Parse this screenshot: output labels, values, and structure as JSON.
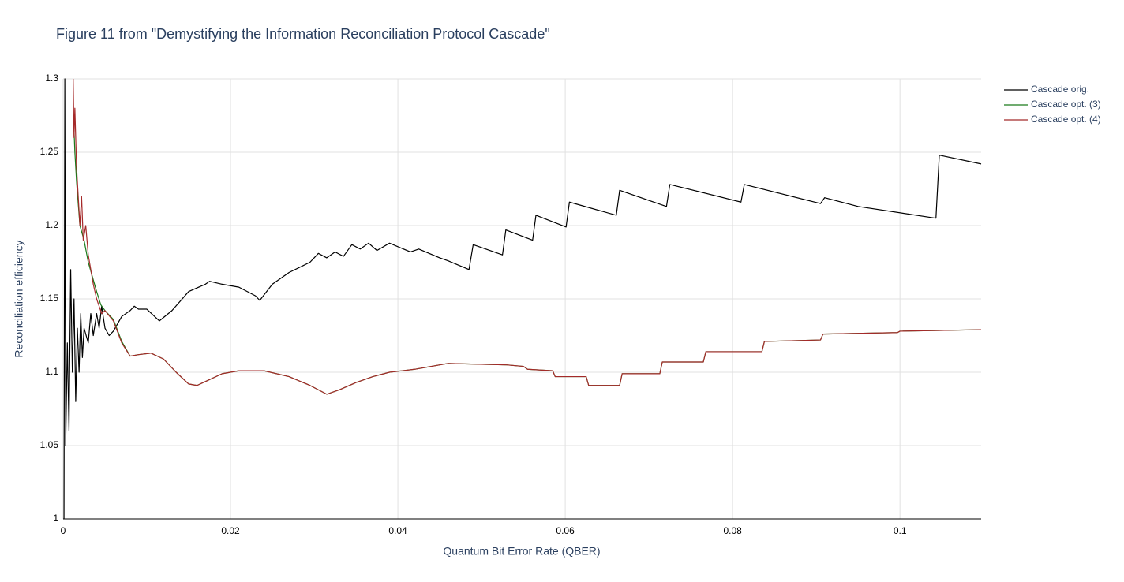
{
  "chart_data": {
    "type": "line",
    "title": "Figure 11 from \"Demystifying the Information Reconciliation Protocol Cascade\"",
    "x_label": "Quantum Bit Error Rate (QBER)",
    "y_label": "Reconciliation efficiency",
    "xlim": [
      0,
      0.1097
    ],
    "ylim": [
      1,
      1.3
    ],
    "xticks": [
      0,
      0.02,
      0.04,
      0.06,
      0.08,
      0.1
    ],
    "yticks": [
      1,
      1.05,
      1.1,
      1.15,
      1.2,
      1.25,
      1.3
    ],
    "grid": true,
    "legend": "top-right",
    "series": [
      {
        "name": "Cascade orig.",
        "color": "#000000",
        "x": [
          0.0001,
          0.0002,
          0.0003,
          0.0005,
          0.0007,
          0.0009,
          0.0011,
          0.0013,
          0.0015,
          0.0017,
          0.0019,
          0.0021,
          0.0023,
          0.0025,
          0.003,
          0.0033,
          0.0036,
          0.004,
          0.0043,
          0.0046,
          0.005,
          0.0055,
          0.006,
          0.007,
          0.008,
          0.0085,
          0.009,
          0.01,
          0.0115,
          0.013,
          0.015,
          0.017,
          0.0175,
          0.019,
          0.021,
          0.023,
          0.0235,
          0.025,
          0.027,
          0.0295,
          0.0305,
          0.0315,
          0.0325,
          0.0335,
          0.0345,
          0.0355,
          0.0365,
          0.0375,
          0.039,
          0.0415,
          0.0425,
          0.045,
          0.046,
          0.0485,
          0.049,
          0.0525,
          0.0529,
          0.0561,
          0.0565,
          0.0601,
          0.0605,
          0.0661,
          0.0665,
          0.0721,
          0.0725,
          0.081,
          0.0814,
          0.0905,
          0.091,
          0.095,
          0.1043,
          0.1047,
          0.1097
        ],
        "values": [
          1.0,
          1.3,
          1.05,
          1.12,
          1.06,
          1.17,
          1.1,
          1.15,
          1.08,
          1.13,
          1.1,
          1.14,
          1.11,
          1.13,
          1.12,
          1.14,
          1.125,
          1.14,
          1.13,
          1.145,
          1.13,
          1.125,
          1.128,
          1.138,
          1.142,
          1.145,
          1.143,
          1.143,
          1.135,
          1.142,
          1.155,
          1.16,
          1.162,
          1.16,
          1.158,
          1.152,
          1.149,
          1.16,
          1.168,
          1.175,
          1.181,
          1.178,
          1.182,
          1.179,
          1.187,
          1.184,
          1.188,
          1.183,
          1.188,
          1.182,
          1.184,
          1.178,
          1.176,
          1.17,
          1.187,
          1.18,
          1.197,
          1.19,
          1.207,
          1.199,
          1.216,
          1.207,
          1.224,
          1.213,
          1.228,
          1.216,
          1.228,
          1.215,
          1.219,
          1.213,
          1.205,
          1.248,
          1.242
        ]
      },
      {
        "name": "Cascade opt. (3)",
        "color": "#1a7a1a",
        "x": [
          0.0012,
          0.0014,
          0.0016,
          0.002,
          0.0025,
          0.003,
          0.0035,
          0.004,
          0.0045,
          0.005,
          0.006,
          0.007,
          0.008,
          0.009,
          0.0105,
          0.012,
          0.0135,
          0.015,
          0.016,
          0.0175,
          0.019,
          0.021,
          0.024,
          0.027,
          0.0295,
          0.0315,
          0.033,
          0.035,
          0.037,
          0.039,
          0.042,
          0.044,
          0.046,
          0.053,
          0.055,
          0.0555,
          0.0585,
          0.0588,
          0.0625,
          0.0628,
          0.0665,
          0.0668,
          0.0713,
          0.0716,
          0.0765,
          0.0768,
          0.0835,
          0.0838,
          0.0905,
          0.0908,
          0.0997,
          0.1,
          0.1097
        ],
        "values": [
          1.28,
          1.25,
          1.23,
          1.2,
          1.19,
          1.175,
          1.165,
          1.155,
          1.146,
          1.142,
          1.136,
          1.121,
          1.111,
          1.112,
          1.113,
          1.109,
          1.1,
          1.092,
          1.091,
          1.095,
          1.099,
          1.101,
          1.101,
          1.097,
          1.091,
          1.085,
          1.088,
          1.093,
          1.097,
          1.1,
          1.102,
          1.104,
          1.106,
          1.105,
          1.104,
          1.102,
          1.101,
          1.097,
          1.097,
          1.091,
          1.091,
          1.099,
          1.099,
          1.107,
          1.107,
          1.114,
          1.114,
          1.121,
          1.122,
          1.126,
          1.127,
          1.128,
          1.129
        ]
      },
      {
        "name": "Cascade opt. (4)",
        "color": "#a52a2a",
        "x": [
          0.0012,
          0.0013,
          0.0014,
          0.0016,
          0.0018,
          0.002,
          0.0022,
          0.0024,
          0.0027,
          0.003,
          0.0033,
          0.0036,
          0.004,
          0.0043,
          0.0046,
          0.005,
          0.006,
          0.007,
          0.008,
          0.009,
          0.0105,
          0.012,
          0.0135,
          0.015,
          0.016,
          0.0175,
          0.019,
          0.021,
          0.024,
          0.027,
          0.0295,
          0.0315,
          0.033,
          0.035,
          0.037,
          0.039,
          0.042,
          0.044,
          0.046,
          0.053,
          0.055,
          0.0555,
          0.0585,
          0.0588,
          0.0625,
          0.0628,
          0.0665,
          0.0668,
          0.0713,
          0.0716,
          0.0765,
          0.0768,
          0.0835,
          0.0838,
          0.0905,
          0.0908,
          0.0997,
          0.1,
          0.1097
        ],
        "values": [
          1.3,
          1.26,
          1.28,
          1.24,
          1.22,
          1.2,
          1.22,
          1.19,
          1.2,
          1.18,
          1.17,
          1.16,
          1.15,
          1.145,
          1.14,
          1.142,
          1.135,
          1.12,
          1.111,
          1.112,
          1.113,
          1.109,
          1.1,
          1.092,
          1.091,
          1.095,
          1.099,
          1.101,
          1.101,
          1.097,
          1.091,
          1.085,
          1.088,
          1.093,
          1.097,
          1.1,
          1.102,
          1.104,
          1.106,
          1.105,
          1.104,
          1.102,
          1.101,
          1.097,
          1.097,
          1.091,
          1.091,
          1.099,
          1.099,
          1.107,
          1.107,
          1.114,
          1.114,
          1.121,
          1.122,
          1.126,
          1.127,
          1.128,
          1.129
        ]
      }
    ]
  }
}
